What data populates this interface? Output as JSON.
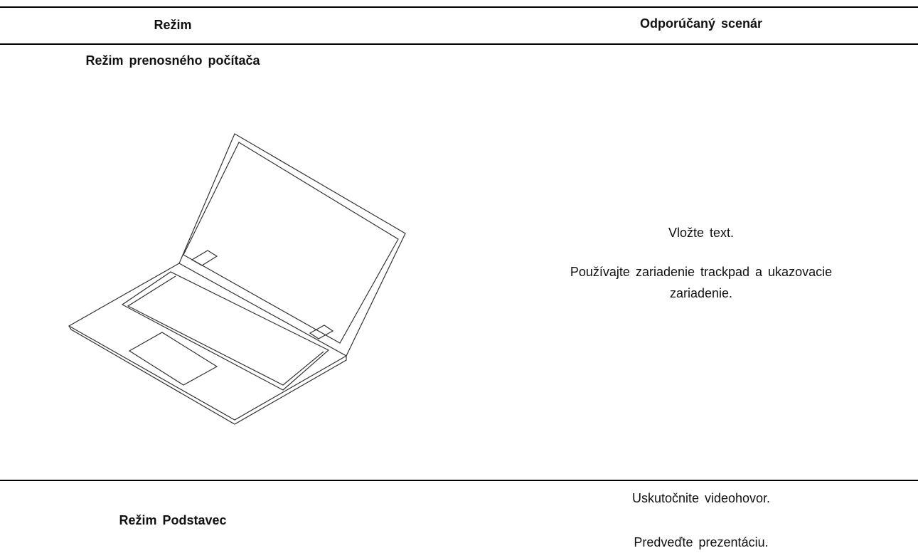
{
  "table": {
    "header": [
      "Režim",
      "Odporúčaný scenár"
    ],
    "rows": [
      {
        "mode": "Režim prenosného počítača",
        "scenarios": [
          "Vložte text.",
          "Používajte zariadenie trackpad a ukazovacie zariadenie."
        ]
      },
      {
        "mode": "Režim Podstavec",
        "scenarios": [
          "Uskutočnite videohovor.",
          "Predveďte prezentáciu."
        ]
      }
    ]
  }
}
